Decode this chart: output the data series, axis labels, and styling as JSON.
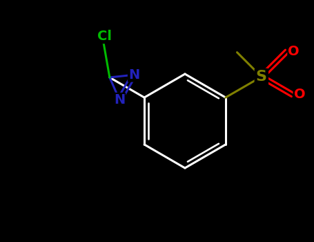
{
  "background_color": "#000000",
  "fig_width": 4.55,
  "fig_height": 3.5,
  "dpi": 100,
  "bond_color": "#ffffff",
  "bond_lw": 2.2,
  "N_color": "#2222bb",
  "Cl_color": "#00bb00",
  "S_color": "#808000",
  "O_color": "#ff0000",
  "label_fontsize": 14,
  "label_fontweight": "bold",
  "xlim": [
    0,
    455
  ],
  "ylim": [
    0,
    350
  ]
}
